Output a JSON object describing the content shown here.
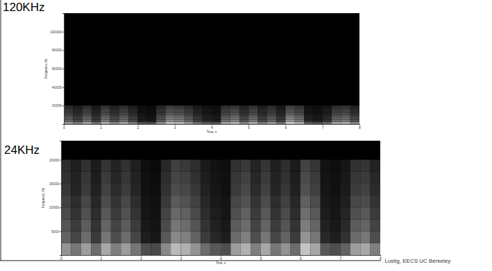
{
  "chart_data": [
    {
      "type": "heatmap",
      "title": "120KHz",
      "x_label": "Time, s",
      "y_label": "Frequency, Hz",
      "xlim": [
        0,
        8
      ],
      "ylim": [
        0,
        120000
      ],
      "xticks": [
        0,
        1,
        2,
        3,
        4,
        5,
        6,
        7,
        8
      ],
      "yticks": [
        20000,
        40000,
        60000,
        80000,
        100000
      ],
      "x_edges": [
        0,
        0.25,
        0.5,
        0.75,
        1,
        1.25,
        1.5,
        1.75,
        2,
        2.25,
        2.5,
        2.75,
        3,
        3.25,
        3.5,
        3.75,
        4,
        4.25,
        4.5,
        4.75,
        5,
        5.25,
        5.5,
        5.75,
        6,
        6.25,
        6.5,
        6.75,
        7,
        7.25,
        7.5,
        7.75,
        8
      ],
      "y_edges": [
        0,
        2500,
        5000,
        7500,
        10000,
        12500,
        15000,
        17500,
        20000
      ],
      "cells": [
        [
          0.75,
          0.6,
          0.8,
          0.55,
          0.85,
          0.65,
          0.8,
          0.6,
          0.4,
          0.37,
          0.7,
          0.95,
          0.9,
          0.75,
          0.55,
          0.45,
          0.4,
          0.8,
          0.9,
          0.65,
          0.85,
          0.6,
          0.75,
          0.55,
          1,
          0.85,
          0.45,
          0.4,
          0.5,
          0.8,
          0.85,
          0.65
        ],
        [
          0.5,
          0.35,
          0.55,
          0.3,
          0.6,
          0.4,
          0.55,
          0.35,
          0.15,
          0.12,
          0.45,
          0.7,
          0.65,
          0.5,
          0.3,
          0.2,
          0.15,
          0.55,
          0.65,
          0.4,
          0.6,
          0.35,
          0.5,
          0.3,
          0.75,
          0.6,
          0.2,
          0.15,
          0.25,
          0.55,
          0.6,
          0.4
        ],
        [
          0.43,
          0.3,
          0.47,
          0.26,
          0.51,
          0.34,
          0.47,
          0.3,
          0.13,
          0.1,
          0.38,
          0.6,
          0.55,
          0.43,
          0.26,
          0.17,
          0.13,
          0.47,
          0.55,
          0.34,
          0.51,
          0.3,
          0.43,
          0.26,
          0.64,
          0.51,
          0.17,
          0.13,
          0.21,
          0.47,
          0.51,
          0.34
        ],
        [
          0.38,
          0.26,
          0.41,
          0.23,
          0.45,
          0.3,
          0.41,
          0.26,
          0.11,
          0.09,
          0.34,
          0.53,
          0.49,
          0.38,
          0.23,
          0.15,
          0.11,
          0.41,
          0.49,
          0.3,
          0.45,
          0.26,
          0.38,
          0.23,
          0.56,
          0.45,
          0.15,
          0.11,
          0.19,
          0.41,
          0.45,
          0.3
        ],
        [
          0.33,
          0.23,
          0.36,
          0.2,
          0.39,
          0.26,
          0.36,
          0.23,
          0.1,
          0.08,
          0.29,
          0.46,
          0.42,
          0.33,
          0.2,
          0.13,
          0.1,
          0.36,
          0.42,
          0.26,
          0.39,
          0.23,
          0.33,
          0.2,
          0.49,
          0.39,
          0.13,
          0.1,
          0.16,
          0.36,
          0.39,
          0.26
        ],
        [
          0.28,
          0.19,
          0.3,
          0.17,
          0.33,
          0.22,
          0.3,
          0.19,
          0.08,
          0.07,
          0.25,
          0.39,
          0.36,
          0.28,
          0.17,
          0.11,
          0.08,
          0.3,
          0.36,
          0.22,
          0.33,
          0.19,
          0.28,
          0.17,
          0.41,
          0.33,
          0.11,
          0.08,
          0.14,
          0.3,
          0.33,
          0.22
        ],
        [
          0.25,
          0.18,
          0.28,
          0.15,
          0.3,
          0.2,
          0.28,
          0.18,
          0.08,
          0.06,
          0.23,
          0.35,
          0.33,
          0.25,
          0.15,
          0.1,
          0.08,
          0.28,
          0.33,
          0.2,
          0.3,
          0.18,
          0.25,
          0.15,
          0.38,
          0.3,
          0.1,
          0.08,
          0.13,
          0.28,
          0.3,
          0.2
        ],
        [
          0.23,
          0.16,
          0.25,
          0.14,
          0.27,
          0.18,
          0.25,
          0.16,
          0.07,
          0.05,
          0.2,
          0.32,
          0.29,
          0.23,
          0.14,
          0.09,
          0.07,
          0.25,
          0.29,
          0.18,
          0.27,
          0.16,
          0.23,
          0.14,
          0.34,
          0.27,
          0.09,
          0.07,
          0.11,
          0.25,
          0.27,
          0.18
        ]
      ]
    },
    {
      "type": "heatmap",
      "title": "24KHz",
      "x_label": "Time, s",
      "y_label": "Frequency, Hz",
      "xlim": [
        0,
        8
      ],
      "ylim": [
        0,
        24000
      ],
      "xticks": [
        0,
        1,
        2,
        3,
        4,
        5,
        6,
        7,
        8
      ],
      "yticks": [
        5000,
        10000,
        15000,
        20000
      ],
      "x_edges": [
        0,
        0.25,
        0.5,
        0.75,
        1,
        1.25,
        1.5,
        1.75,
        2,
        2.25,
        2.5,
        2.75,
        3,
        3.25,
        3.5,
        3.75,
        4,
        4.25,
        4.5,
        4.75,
        5,
        5.25,
        5.5,
        5.75,
        6,
        6.25,
        6.5,
        6.75,
        7,
        7.25,
        7.5,
        7.75,
        8
      ],
      "y_edges": [
        0,
        2500,
        5000,
        7500,
        10000,
        12500,
        15000,
        17500,
        20000
      ],
      "cells": [
        [
          0.75,
          0.6,
          0.8,
          0.55,
          0.85,
          0.65,
          0.8,
          0.6,
          0.4,
          0.37,
          0.7,
          0.95,
          0.9,
          0.75,
          0.55,
          0.45,
          0.4,
          0.8,
          0.9,
          0.65,
          0.85,
          0.6,
          0.75,
          0.55,
          1,
          0.85,
          0.45,
          0.4,
          0.5,
          0.8,
          0.85,
          0.65
        ],
        [
          0.5,
          0.35,
          0.55,
          0.3,
          0.6,
          0.4,
          0.55,
          0.35,
          0.15,
          0.12,
          0.45,
          0.7,
          0.65,
          0.5,
          0.3,
          0.2,
          0.15,
          0.55,
          0.65,
          0.4,
          0.6,
          0.35,
          0.5,
          0.3,
          0.75,
          0.6,
          0.2,
          0.15,
          0.25,
          0.55,
          0.6,
          0.4
        ],
        [
          0.43,
          0.3,
          0.47,
          0.26,
          0.51,
          0.34,
          0.47,
          0.3,
          0.13,
          0.1,
          0.38,
          0.6,
          0.55,
          0.43,
          0.26,
          0.17,
          0.13,
          0.47,
          0.55,
          0.34,
          0.51,
          0.3,
          0.43,
          0.26,
          0.64,
          0.51,
          0.17,
          0.13,
          0.21,
          0.47,
          0.51,
          0.34
        ],
        [
          0.38,
          0.26,
          0.41,
          0.23,
          0.45,
          0.3,
          0.41,
          0.26,
          0.11,
          0.09,
          0.34,
          0.53,
          0.49,
          0.38,
          0.23,
          0.15,
          0.11,
          0.41,
          0.49,
          0.3,
          0.45,
          0.26,
          0.38,
          0.23,
          0.56,
          0.45,
          0.15,
          0.11,
          0.19,
          0.41,
          0.45,
          0.3
        ],
        [
          0.33,
          0.23,
          0.36,
          0.2,
          0.39,
          0.26,
          0.36,
          0.23,
          0.1,
          0.08,
          0.29,
          0.46,
          0.42,
          0.33,
          0.2,
          0.13,
          0.1,
          0.36,
          0.42,
          0.26,
          0.39,
          0.23,
          0.33,
          0.2,
          0.49,
          0.39,
          0.13,
          0.1,
          0.16,
          0.36,
          0.39,
          0.26
        ],
        [
          0.28,
          0.19,
          0.3,
          0.17,
          0.33,
          0.22,
          0.3,
          0.19,
          0.08,
          0.07,
          0.25,
          0.39,
          0.36,
          0.28,
          0.17,
          0.11,
          0.08,
          0.3,
          0.36,
          0.22,
          0.33,
          0.19,
          0.28,
          0.17,
          0.41,
          0.33,
          0.11,
          0.08,
          0.14,
          0.3,
          0.33,
          0.22
        ],
        [
          0.25,
          0.18,
          0.28,
          0.15,
          0.3,
          0.2,
          0.28,
          0.18,
          0.08,
          0.06,
          0.23,
          0.35,
          0.33,
          0.25,
          0.15,
          0.1,
          0.08,
          0.28,
          0.33,
          0.2,
          0.3,
          0.18,
          0.25,
          0.15,
          0.38,
          0.3,
          0.1,
          0.08,
          0.13,
          0.28,
          0.3,
          0.2
        ],
        [
          0.23,
          0.16,
          0.25,
          0.14,
          0.27,
          0.18,
          0.25,
          0.16,
          0.07,
          0.05,
          0.2,
          0.32,
          0.29,
          0.23,
          0.14,
          0.09,
          0.07,
          0.25,
          0.29,
          0.18,
          0.27,
          0.16,
          0.23,
          0.14,
          0.34,
          0.27,
          0.09,
          0.07,
          0.11,
          0.25,
          0.27,
          0.18
        ]
      ]
    }
  ],
  "footer": ". Lustig, EECS UC Berkeley"
}
